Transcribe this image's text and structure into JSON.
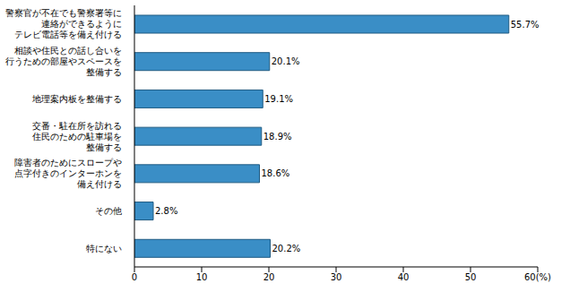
{
  "chart_data": {
    "type": "bar",
    "orientation": "horizontal",
    "categories": [
      "警察官が不在でも警察署等に\n連絡ができるように\nテレビ電話等を備え付ける",
      "相談や住民との話し合いを\n行うための部屋やスペースを\n整備する",
      "地理案内板を整備する",
      "交番・駐在所を訪れる\n住民のための駐車場を\n整備する",
      "障害者のためにスロープや\n点字付きのインターホンを\n備え付ける",
      "その他",
      "特にない"
    ],
    "values": [
      55.7,
      20.1,
      19.1,
      18.9,
      18.6,
      2.8,
      20.2
    ],
    "value_labels": [
      "55.7%",
      "20.1%",
      "19.1%",
      "18.9%",
      "18.6%",
      "2.8%",
      "20.2%"
    ],
    "data_labels": true,
    "color": "#3a8ec6",
    "xlim": [
      0,
      60
    ],
    "xticks": [
      0,
      10,
      20,
      30,
      40,
      50,
      {
        "value": 60,
        "label": "60(%)"
      }
    ],
    "grid": false
  }
}
